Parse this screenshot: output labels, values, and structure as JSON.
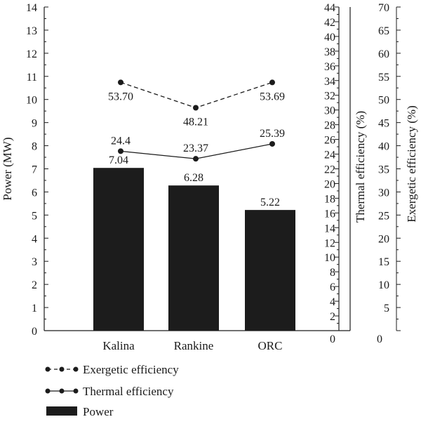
{
  "chart_data": {
    "type": "bar",
    "categories": [
      "Kalina",
      "Rankine",
      "ORC"
    ],
    "series": [
      {
        "name": "Power",
        "type": "bar",
        "axis": "left",
        "values": [
          7.04,
          6.28,
          5.22
        ],
        "labels": [
          "7.04",
          "6.28",
          "5.22"
        ]
      },
      {
        "name": "Thermal efficiency",
        "type": "line",
        "line_style": "solid",
        "axis": "right1",
        "values": [
          24.4,
          23.37,
          25.39
        ],
        "labels": [
          "24.4",
          "23.37",
          "25.39"
        ]
      },
      {
        "name": "Exergetic efficiency",
        "type": "line",
        "line_style": "dashed",
        "axis": "right2",
        "values": [
          53.7,
          48.21,
          53.69
        ],
        "labels": [
          "53.70",
          "48.21",
          "53.69"
        ]
      }
    ],
    "axes": {
      "left": {
        "label": "Power (MW)",
        "min": 0,
        "max": 14,
        "step": 1
      },
      "right1": {
        "label": "Thermal efficiency (%)",
        "min": 0,
        "max": 44,
        "step": 2
      },
      "right2": {
        "label": "Exergetic efficiency (%)",
        "min": 0,
        "max": 70,
        "step": 5
      }
    },
    "legend_position": "bottom-left",
    "colors": {
      "bar": "#1c1c1c",
      "line": "#1c1c1c",
      "axis": "#1c1c1c"
    }
  }
}
